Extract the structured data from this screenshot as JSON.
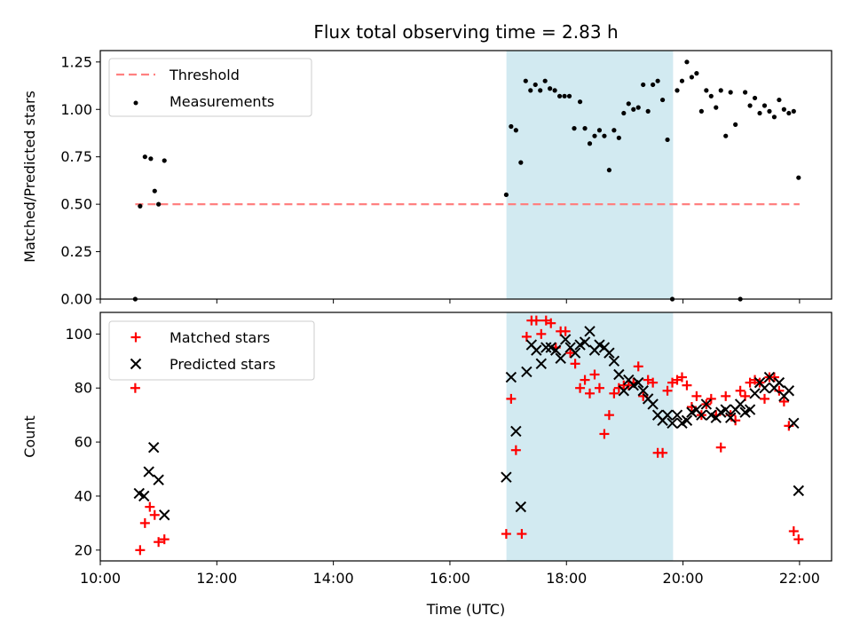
{
  "chart_data": [
    {
      "type": "scatter",
      "title": "Flux total observing time = 2.83 h",
      "xlabel": "",
      "ylabel": "Matched/Predicted stars",
      "xlim_hours": [
        10.0,
        22.55
      ],
      "ylim": [
        0,
        1.31
      ],
      "yticks": [
        0.0,
        0.25,
        0.5,
        0.75,
        1.0,
        1.25
      ],
      "ytick_labels": [
        "0.00",
        "0.25",
        "0.50",
        "0.75",
        "1.00",
        "1.25"
      ],
      "shaded_region_hours": [
        16.97,
        19.83
      ],
      "shaded_color": "#add8e6",
      "legend_position": "upper left",
      "threshold": {
        "name": "Threshold",
        "value": 0.5,
        "x_hours": [
          10.6,
          22.0
        ],
        "color": "#ff8080",
        "style": "dashed"
      },
      "series": [
        {
          "name": "Measurements",
          "color": "#000000",
          "marker": "dot",
          "x": [
            "10:36",
            "10:41",
            "10:46",
            "10:52",
            "10:56",
            "11:00",
            "11:06",
            "16:58",
            "17:03",
            "17:08",
            "17:13",
            "17:18",
            "17:23",
            "17:28",
            "17:33",
            "17:38",
            "17:43",
            "17:48",
            "17:53",
            "17:58",
            "18:03",
            "18:08",
            "18:14",
            "18:19",
            "18:24",
            "18:29",
            "18:34",
            "18:39",
            "18:44",
            "18:49",
            "18:54",
            "18:59",
            "19:04",
            "19:09",
            "19:14",
            "19:19",
            "19:24",
            "19:29",
            "19:34",
            "19:39",
            "19:44",
            "19:49",
            "19:54",
            "19:59",
            "20:04",
            "20:09",
            "20:14",
            "20:19",
            "20:24",
            "20:29",
            "20:34",
            "20:39",
            "20:44",
            "20:49",
            "20:54",
            "20:59",
            "21:04",
            "21:09",
            "21:14",
            "21:19",
            "21:24",
            "21:29",
            "21:34",
            "21:39",
            "21:44",
            "21:49",
            "21:54",
            "21:59"
          ],
          "y": [
            0.0,
            0.49,
            0.75,
            0.74,
            0.57,
            0.5,
            0.73,
            0.55,
            0.91,
            0.89,
            0.72,
            1.15,
            1.1,
            1.13,
            1.1,
            1.15,
            1.11,
            1.1,
            1.07,
            1.07,
            1.07,
            0.9,
            1.04,
            0.9,
            0.82,
            0.86,
            0.89,
            0.86,
            0.68,
            0.89,
            0.85,
            0.98,
            1.03,
            1.0,
            1.01,
            1.13,
            0.99,
            1.13,
            1.15,
            1.05,
            0.84,
            0.0,
            1.1,
            1.15,
            1.25,
            1.17,
            1.19,
            0.99,
            1.1,
            1.07,
            1.01,
            1.1,
            0.86,
            1.09,
            0.92,
            0.0,
            1.09,
            1.02,
            1.06,
            0.98,
            1.02,
            0.99,
            0.96,
            1.05,
            1.0,
            0.98,
            0.99,
            0.64
          ]
        }
      ]
    },
    {
      "type": "scatter",
      "title": "",
      "xlabel": "Time (UTC)",
      "ylabel": "Count",
      "xlim_hours": [
        10.0,
        22.55
      ],
      "ylim": [
        16,
        108
      ],
      "yticks": [
        20,
        40,
        60,
        80,
        100
      ],
      "ytick_labels": [
        "20",
        "40",
        "60",
        "80",
        "100"
      ],
      "xticks_hours": [
        10,
        12,
        14,
        16,
        18,
        20,
        22
      ],
      "xtick_labels": [
        "10:00",
        "12:00",
        "14:00",
        "16:00",
        "18:00",
        "20:00",
        "22:00"
      ],
      "shaded_region_hours": [
        16.97,
        19.83
      ],
      "shaded_color": "#add8e6",
      "legend_position": "upper left",
      "series": [
        {
          "name": "Matched stars",
          "color": "#ff0000",
          "marker": "plus",
          "x": [
            "10:36",
            "10:41",
            "10:46",
            "10:51",
            "10:56",
            "11:00",
            "11:06",
            "16:58",
            "17:03",
            "17:08",
            "17:14",
            "17:19",
            "17:24",
            "17:29",
            "17:34",
            "17:39",
            "17:44",
            "17:49",
            "17:54",
            "17:59",
            "18:04",
            "18:09",
            "18:14",
            "18:19",
            "18:24",
            "18:29",
            "18:34",
            "18:39",
            "18:44",
            "18:49",
            "18:54",
            "18:59",
            "19:04",
            "19:09",
            "19:14",
            "19:19",
            "19:24",
            "19:29",
            "19:34",
            "19:39",
            "19:44",
            "19:49",
            "19:54",
            "19:59",
            "20:04",
            "20:09",
            "20:14",
            "20:19",
            "20:24",
            "20:29",
            "20:34",
            "20:39",
            "20:44",
            "20:49",
            "20:54",
            "20:59",
            "21:04",
            "21:09",
            "21:14",
            "21:19",
            "21:24",
            "21:29",
            "21:34",
            "21:39",
            "21:44",
            "21:49",
            "21:54",
            "21:59"
          ],
          "y": [
            80,
            20,
            30,
            36,
            33,
            23,
            24,
            26,
            76,
            57,
            26,
            99,
            105,
            105,
            100,
            105,
            104,
            95,
            101,
            101,
            93,
            89,
            80,
            83,
            78,
            85,
            80,
            63,
            70,
            78,
            80,
            81,
            81,
            82,
            88,
            77,
            83,
            82,
            56,
            56,
            79,
            82,
            83,
            84,
            81,
            73,
            77,
            70,
            74,
            76,
            70,
            58,
            77,
            70,
            68,
            79,
            77,
            82,
            83,
            82,
            76,
            84,
            84,
            79,
            75,
            66,
            27,
            24
          ]
        },
        {
          "name": "Predicted stars",
          "color": "#000000",
          "marker": "x",
          "x": [
            "10:40",
            "10:45",
            "10:50",
            "10:55",
            "11:00",
            "11:06",
            "16:58",
            "17:03",
            "17:08",
            "17:13",
            "17:19",
            "17:24",
            "17:29",
            "17:34",
            "17:39",
            "17:44",
            "17:49",
            "17:54",
            "17:59",
            "18:04",
            "18:09",
            "18:14",
            "18:19",
            "18:24",
            "18:29",
            "18:34",
            "18:39",
            "18:44",
            "18:49",
            "18:54",
            "18:59",
            "19:04",
            "19:09",
            "19:14",
            "19:19",
            "19:24",
            "19:29",
            "19:34",
            "19:39",
            "19:44",
            "19:49",
            "19:54",
            "19:59",
            "20:04",
            "20:09",
            "20:14",
            "20:19",
            "20:24",
            "20:29",
            "20:34",
            "20:39",
            "20:44",
            "20:49",
            "20:54",
            "20:59",
            "21:04",
            "21:09",
            "21:14",
            "21:19",
            "21:24",
            "21:29",
            "21:34",
            "21:39",
            "21:44",
            "21:49",
            "21:54",
            "21:59"
          ],
          "y": [
            41,
            40,
            49,
            58,
            46,
            33,
            47,
            84,
            64,
            36,
            86,
            96,
            94,
            89,
            95,
            95,
            94,
            91,
            98,
            95,
            93,
            96,
            97,
            101,
            94,
            96,
            95,
            93,
            90,
            85,
            79,
            83,
            81,
            82,
            79,
            76,
            74,
            70,
            68,
            70,
            67,
            70,
            67,
            68,
            71,
            72,
            70,
            74,
            70,
            69,
            71,
            72,
            69,
            72,
            74,
            71,
            72,
            78,
            82,
            80,
            84,
            80,
            82,
            77,
            79,
            67,
            42
          ]
        }
      ]
    }
  ]
}
